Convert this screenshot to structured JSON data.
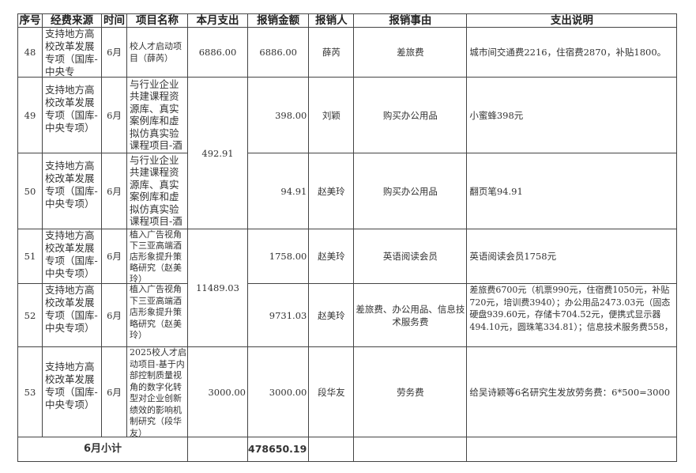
{
  "headers": [
    "序号",
    "经费来源",
    "时间",
    "项目名称",
    "本月支出",
    "报销金额",
    "报销人",
    "报销事由",
    "支出说明"
  ],
  "rows": [
    {
      "no": "48",
      "source": "支持地方高校改革发展专项（国库-中央专",
      "time": "6月",
      "project": "校人才启动项目（薛芮）",
      "monthly": "6886.00",
      "amount": "6886.00",
      "person": "薛芮",
      "reason": "差旅费",
      "desc": "城市间交通费2216，住宿费2870，补贴1800。"
    },
    {
      "no": "49",
      "source": "支持地方高校改革发展专项（国库-中央专项）",
      "time": "6月",
      "project": "与行业企业共建课程资源库、真实案例库和虚拟仿真实验课程项目-酒",
      "monthly": "492.91",
      "amount": "398.00",
      "person": "刘颖",
      "reason": "购买办公用品",
      "desc": "小蜜蜂398元"
    },
    {
      "no": "50",
      "source": "支持地方高校改革发展专项（国库-中央专项）",
      "time": "6月",
      "project": "与行业企业共建课程资源库、真实案例库和虚拟仿真实验课程项目-酒",
      "amount": "94.91",
      "person": "赵美玲",
      "reason": "购买办公用品",
      "desc": "翻页笔94.91"
    },
    {
      "no": "51",
      "source": "支持地方高校改革发展专项（国库-中央专项）",
      "time": "6月",
      "project": "植入广告视角下三亚高端酒店形象提升策略研究（赵美玲）",
      "monthly": "11489.03",
      "amount": "1758.00",
      "person": "赵美玲",
      "reason": "英语阅读会员",
      "desc": "英语阅读会员1758元"
    },
    {
      "no": "52",
      "source": "支持地方高校改革发展专项（国库-中央专项）",
      "time": "6月",
      "project": "植入广告视角下三亚高端酒店形象提升策略研究（赵美玲）",
      "amount": "9731.03",
      "person": "赵美玲",
      "reason": "差旅费、办公用品、信息技术服务费",
      "desc": "差旅费6700元（机票990元，住宿费1050元，补贴720元，培训费3940）；办公用品2473.03元（固态硬盘939.60元，存储卡704.52元，便携式显示器494.10元，圆珠笔334.81）；信息技术服务费558，"
    },
    {
      "no": "53",
      "source": "支持地方高校改革发展专项（国库-中央专项）",
      "time": "6月",
      "project": "2025校人才启动项目-基于内部控制质量视角的数字化转型对企业创新绩效的影响机制研究（段华友）",
      "monthly": "3000.00",
      "amount": "3000.00",
      "person": "段华友",
      "reason": "劳务费",
      "desc": "给吴诗颖等6名研究生发放劳务费：6*500=3000"
    }
  ],
  "subtotal": {
    "label": "6月小计",
    "amount": "478650.19"
  }
}
